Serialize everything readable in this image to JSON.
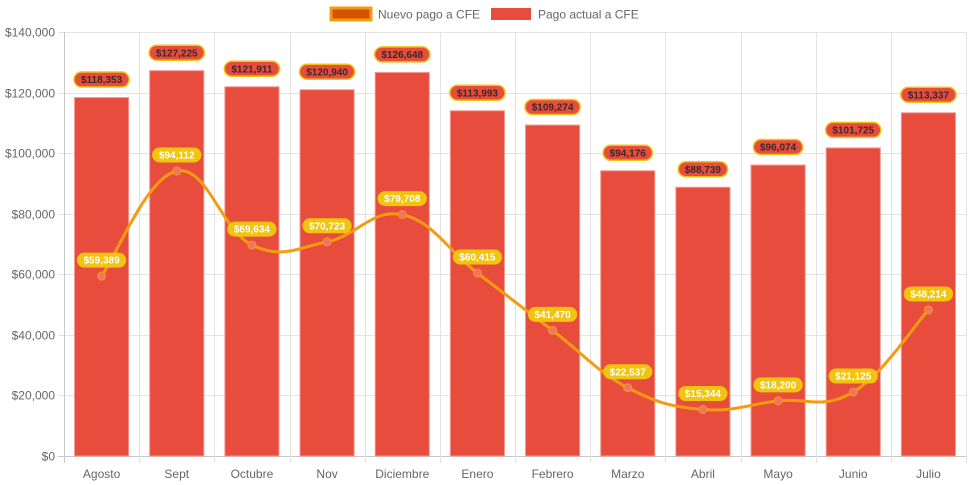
{
  "chart_data": {
    "type": "bar",
    "title": "",
    "xlabel": "",
    "ylabel": "",
    "categories": [
      "Agosto",
      "Sept",
      "Octubre",
      "Nov",
      "Diciembre",
      "Enero",
      "Febrero",
      "Marzo",
      "Abril",
      "Mayo",
      "Junio",
      "Julio"
    ],
    "ylim": [
      0,
      140000
    ],
    "yticks": [
      0,
      20000,
      40000,
      60000,
      80000,
      100000,
      120000,
      140000
    ],
    "ytick_labels": [
      "$0",
      "$20,000",
      "$40,000",
      "$60,000",
      "$80,000",
      "$100,000",
      "$120,000",
      "$140,000"
    ],
    "grid": true,
    "legend_position": "top-center",
    "series": [
      {
        "name": "Nuevo pago a CFE",
        "type": "line",
        "smooth": true,
        "color": "#f39c12",
        "point_color": "#f0736a",
        "label_bg": "#f1c40f",
        "legend_fill": "#d35400",
        "legend_border": "#f39c12",
        "values": [
          59389,
          94112,
          69634,
          70723,
          79708,
          60415,
          41470,
          22537,
          15344,
          18200,
          21125,
          48214
        ],
        "labels": [
          "$59,389",
          "$94,112",
          "$69,634",
          "$70,723",
          "$79,708",
          "$60,415",
          "$41,470",
          "$22,537",
          "$15,344",
          "$18,200",
          "$21,125",
          "$48,214"
        ]
      },
      {
        "name": "Pago actual a CFE",
        "type": "bar",
        "color": "#e74c3c",
        "label_bg": "#e74c3c",
        "label_border": "#f1c40f",
        "values": [
          118353,
          127225,
          121911,
          120940,
          126648,
          113993,
          109274,
          94176,
          88739,
          96074,
          101725,
          113337
        ],
        "labels": [
          "$118,353",
          "$127,225",
          "$121,911",
          "$120,940",
          "$126,648",
          "$113,993",
          "$109,274",
          "$94,176",
          "$88,739",
          "$96,074",
          "$101,725",
          "$113,337"
        ]
      }
    ]
  }
}
